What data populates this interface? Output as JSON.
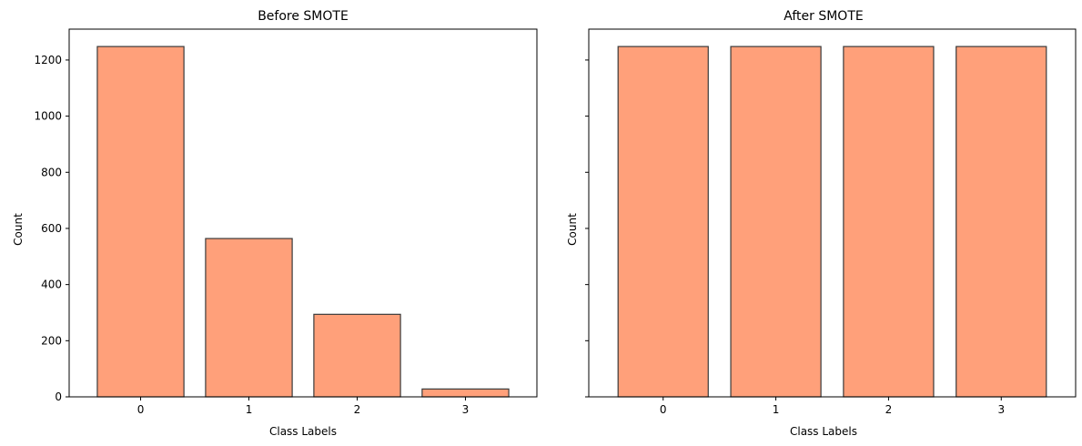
{
  "chart_data": [
    {
      "type": "bar",
      "title": "Before SMOTE",
      "xlabel": "Class Labels",
      "ylabel": "Count",
      "categories": [
        "0",
        "1",
        "2",
        "3"
      ],
      "values": [
        1248,
        564,
        294,
        28
      ],
      "ylim": [
        0,
        1310
      ],
      "yticks": [
        0,
        200,
        400,
        600,
        800,
        1000,
        1200
      ],
      "grid": false,
      "bar_color": "#ffa07a",
      "edge_color": "#3a3a3a"
    },
    {
      "type": "bar",
      "title": "After SMOTE",
      "xlabel": "Class Labels",
      "ylabel": "Count",
      "categories": [
        "0",
        "1",
        "2",
        "3"
      ],
      "values": [
        1248,
        1248,
        1248,
        1248
      ],
      "ylim": [
        0,
        1310
      ],
      "yticks": [
        0,
        200,
        400,
        600,
        800,
        1000,
        1200
      ],
      "show_ytick_labels": false,
      "grid": false,
      "bar_color": "#ffa07a",
      "edge_color": "#3a3a3a"
    }
  ]
}
